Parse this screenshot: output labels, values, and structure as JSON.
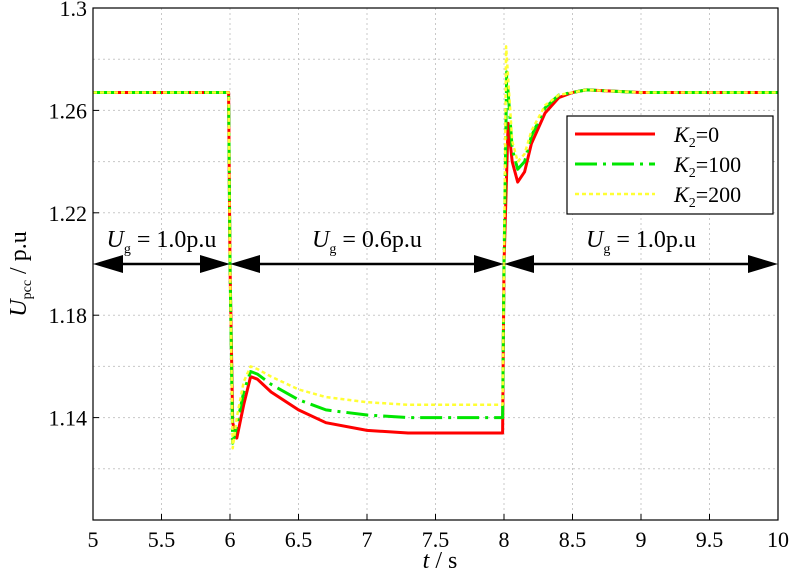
{
  "chart_data": {
    "type": "line",
    "xlabel": "t / s",
    "ylabel": "U_pcc / p.u",
    "xlim": [
      5,
      10
    ],
    "ylim": [
      1.1,
      1.3
    ],
    "xticks": [
      "5",
      "5.5",
      "6",
      "6.5",
      "7",
      "7.5",
      "8",
      "8.5",
      "9",
      "9.5",
      "10"
    ],
    "yticks": [
      "1.14",
      "1.18",
      "1.22",
      "1.26",
      "1.3"
    ],
    "grid": true,
    "legend_position": "top-right",
    "series": [
      {
        "name": "K2=0",
        "color": "#ff0000",
        "x": [
          5,
          5.99,
          6.0,
          6.02,
          6.05,
          6.1,
          6.15,
          6.2,
          6.3,
          6.5,
          6.7,
          7.0,
          7.3,
          7.6,
          7.99,
          8.0,
          8.03,
          8.06,
          8.1,
          8.15,
          8.2,
          8.3,
          8.4,
          8.5,
          8.6,
          9.0,
          10
        ],
        "y": [
          1.267,
          1.267,
          1.2,
          1.138,
          1.132,
          1.145,
          1.156,
          1.155,
          1.15,
          1.143,
          1.138,
          1.135,
          1.134,
          1.134,
          1.134,
          1.2,
          1.255,
          1.24,
          1.232,
          1.236,
          1.247,
          1.259,
          1.265,
          1.267,
          1.268,
          1.267,
          1.267
        ]
      },
      {
        "name": "K2=100",
        "color": "#00e600",
        "x": [
          5,
          5.99,
          6.0,
          6.02,
          6.05,
          6.1,
          6.15,
          6.2,
          6.3,
          6.5,
          6.7,
          7.0,
          7.3,
          7.6,
          7.99,
          8.0,
          8.02,
          8.06,
          8.1,
          8.15,
          8.2,
          8.3,
          8.4,
          8.5,
          8.6,
          9.0,
          10
        ],
        "y": [
          1.267,
          1.267,
          1.2,
          1.13,
          1.137,
          1.15,
          1.158,
          1.157,
          1.153,
          1.147,
          1.143,
          1.141,
          1.14,
          1.14,
          1.14,
          1.2,
          1.275,
          1.245,
          1.237,
          1.24,
          1.25,
          1.261,
          1.266,
          1.267,
          1.268,
          1.267,
          1.267
        ]
      },
      {
        "name": "K2=200",
        "color": "#ffff33",
        "x": [
          5,
          5.99,
          6.0,
          6.02,
          6.05,
          6.1,
          6.15,
          6.2,
          6.3,
          6.5,
          6.7,
          7.0,
          7.3,
          7.6,
          7.99,
          8.0,
          8.015,
          8.06,
          8.1,
          8.15,
          8.2,
          8.3,
          8.4,
          8.5,
          8.6,
          9.0,
          10
        ],
        "y": [
          1.267,
          1.267,
          1.2,
          1.128,
          1.14,
          1.154,
          1.16,
          1.159,
          1.156,
          1.151,
          1.148,
          1.146,
          1.145,
          1.145,
          1.145,
          1.2,
          1.285,
          1.248,
          1.24,
          1.243,
          1.252,
          1.262,
          1.266,
          1.267,
          1.268,
          1.267,
          1.267
        ]
      }
    ],
    "annotations": [
      {
        "label": "U_g = 1.0p.u",
        "x_start": 5,
        "x_end": 6,
        "y": 1.2
      },
      {
        "label": "U_g = 0.6p.u",
        "x_start": 6,
        "x_end": 8,
        "y": 1.2
      },
      {
        "label": "U_g = 1.0p.u",
        "x_start": 8,
        "x_end": 10,
        "y": 1.2
      }
    ]
  }
}
